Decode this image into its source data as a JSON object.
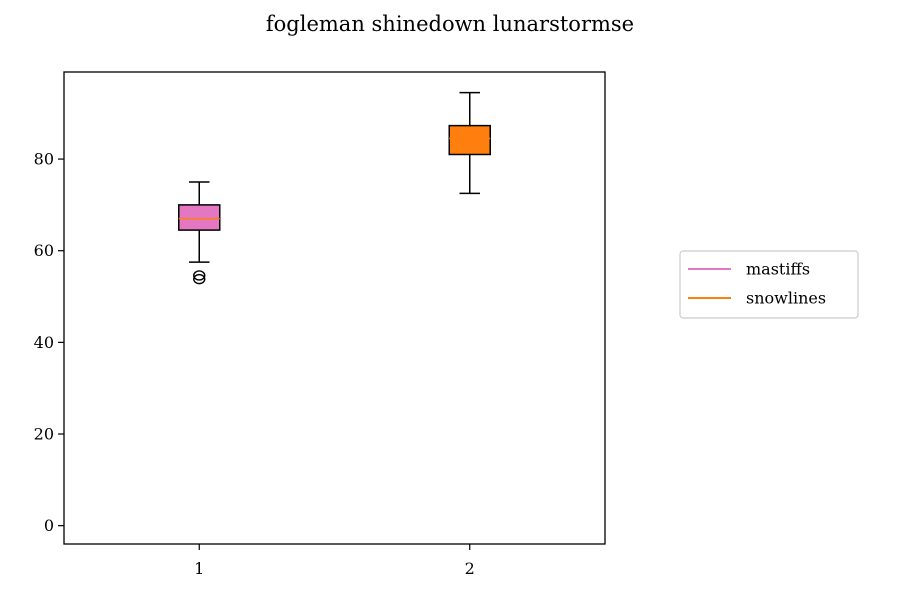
{
  "chart_data": {
    "type": "box",
    "title": "fogleman shinedown lunarstormse",
    "xlabel": "",
    "ylabel": "",
    "categories": [
      "1",
      "2"
    ],
    "x_ticks": [
      "1",
      "2"
    ],
    "y_ticks": [
      "0",
      "20",
      "40",
      "60",
      "80"
    ],
    "ylim": [
      -4,
      99
    ],
    "xlim": [
      0.5,
      2.5
    ],
    "grid": false,
    "legend_position": "right",
    "series": [
      {
        "name": "mastiffs",
        "position": 1,
        "color": "#e377c2",
        "median_color": "#ff7f0e",
        "whisker_low": 57.5,
        "q1": 64.5,
        "median": 67,
        "q3": 70,
        "whisker_high": 75,
        "outliers": [
          53.8,
          54.6
        ]
      },
      {
        "name": "snowlines",
        "position": 2,
        "color": "#ff7f0e",
        "median_color": "#ff7f0e",
        "whisker_low": 72.5,
        "q1": 81,
        "median": 84.5,
        "q3": 87.3,
        "whisker_high": 94.5,
        "outliers": []
      }
    ]
  }
}
